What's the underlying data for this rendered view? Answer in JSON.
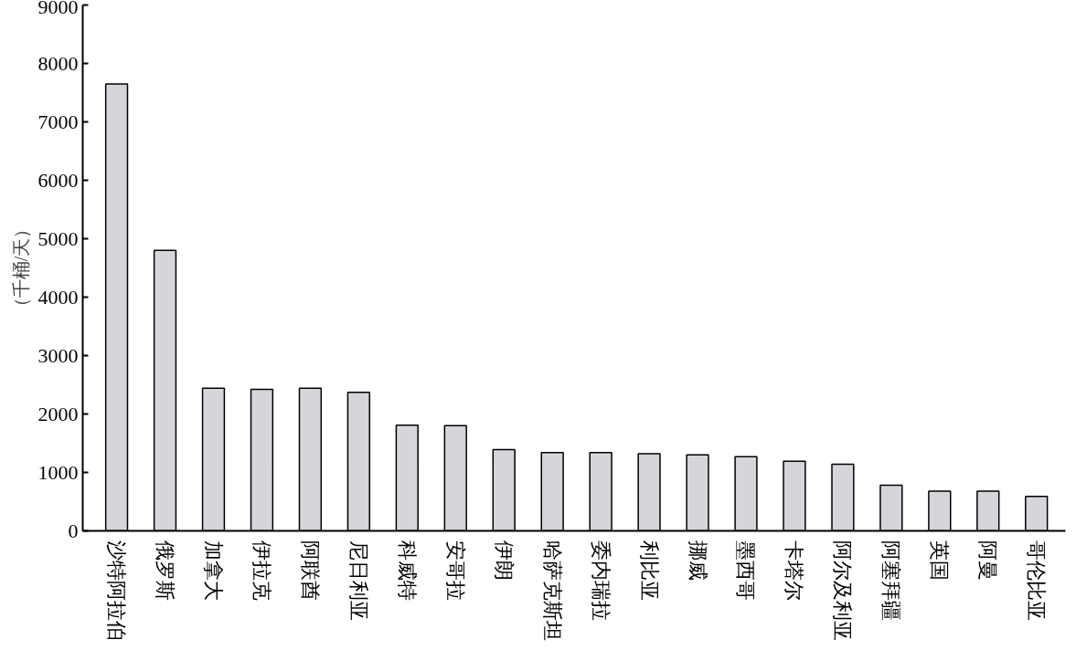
{
  "chart_data": {
    "type": "bar",
    "ylabel": "（千桶/天）",
    "categories": [
      "沙特阿拉伯",
      "俄罗斯",
      "加拿大",
      "伊拉克",
      "阿联酋",
      "尼日利亚",
      "科威特",
      "安哥拉",
      "伊朗",
      "哈萨克斯坦",
      "委内瑞拉",
      "利比亚",
      "挪威",
      "墨西哥",
      "卡塔尔",
      "阿尔及利亚",
      "阿塞拜疆",
      "英国",
      "阿曼",
      "哥伦比亚"
    ],
    "values": [
      7650,
      4800,
      2440,
      2420,
      2440,
      2370,
      1810,
      1800,
      1390,
      1340,
      1340,
      1320,
      1300,
      1270,
      1190,
      1140,
      780,
      680,
      680,
      590
    ],
    "color": "#d4d6d9",
    "ylim": [
      0,
      9000
    ],
    "yticks": [
      0,
      1000,
      2000,
      3000,
      4000,
      5000,
      6000,
      7000,
      8000,
      9000
    ],
    "grid": false
  }
}
